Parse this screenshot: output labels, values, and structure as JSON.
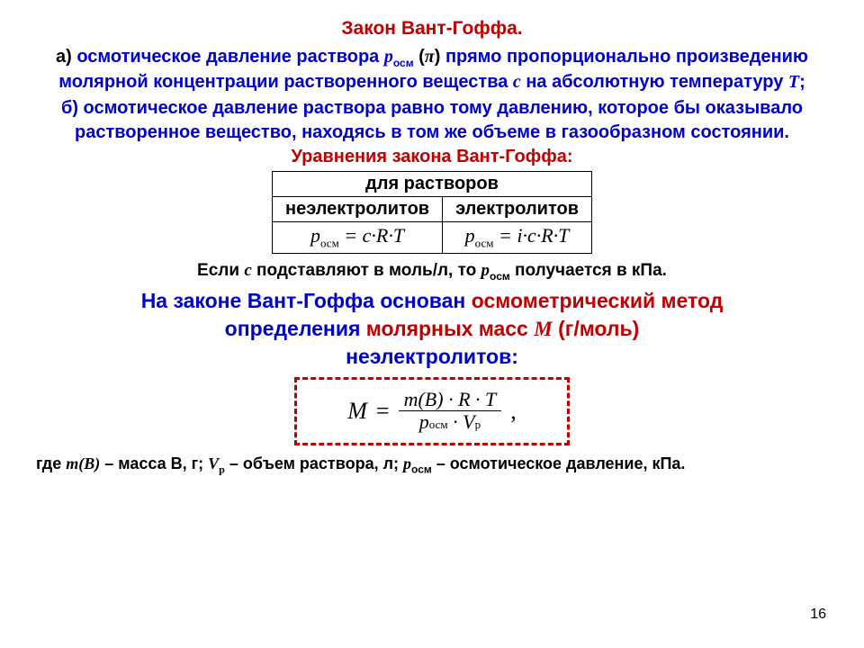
{
  "colors": {
    "red": "#c00000",
    "blue": "#0000cc",
    "black": "#000000",
    "background": "#ffffff",
    "dash_border": "#c00000"
  },
  "title": "Закон Вант-Гоффа.",
  "para_a": {
    "lead": "а) ",
    "t1": "осмотическое давление раствора ",
    "p": "p",
    "p_sub": "осм",
    "pi_open": " (",
    "pi": "π",
    "pi_close": ") ",
    "t2": "прямо пропорционально произведению молярной концентрации растворенного вещества ",
    "c": "с",
    "t3": " на абсолютную температуру ",
    "T": "Т",
    "t4": ";"
  },
  "para_b": "б)  осмотическое давление раствора равно тому давлению, которое бы оказывало растворенное вещество, находясь в том же объеме в газообразном состоянии.",
  "eq_title": "Уравнения закона Вант-Гоффа:",
  "table": {
    "header": "для растворов",
    "col1": "неэлектролитов",
    "col2": "электролитов",
    "f1_p": "p",
    "f1_sub": "осм",
    "f1_rest": " = c·R·T",
    "f2_p": "p",
    "f2_sub": "осм",
    "f2_rest": " = i·c·R·T"
  },
  "note": {
    "t1": "Если ",
    "c": "с",
    "t2": " подставляют в моль/л, то ",
    "p": "p",
    "p_sub": "осм",
    "t3": " получается в кПа."
  },
  "osmo": {
    "l1a": "На законе Вант-Гоффа основан ",
    "l1b": "осмометрический метод",
    "l2a": "определения ",
    "l2b": "молярных масс ",
    "l2c": "M",
    "l2d": " (г/моль)",
    "l3": "неэлектролитов:"
  },
  "formula": {
    "M": "M",
    "eq": " = ",
    "num": "m(B) · R · T",
    "den_p": "p",
    "den_sub": "осм",
    "den_dot": " · V",
    "den_vsub": "p",
    "comma": ","
  },
  "legend": {
    "t1": "где ",
    "mB": "m(В)",
    "t2": " – масса В, г; ",
    "Vp": "V",
    "Vp_sub": "p",
    "t3": " – объем раствора, л; ",
    "p": "p",
    "p_sub": "осм",
    "t4": " – осмотическое давление, кПа."
  },
  "page_number": "16"
}
